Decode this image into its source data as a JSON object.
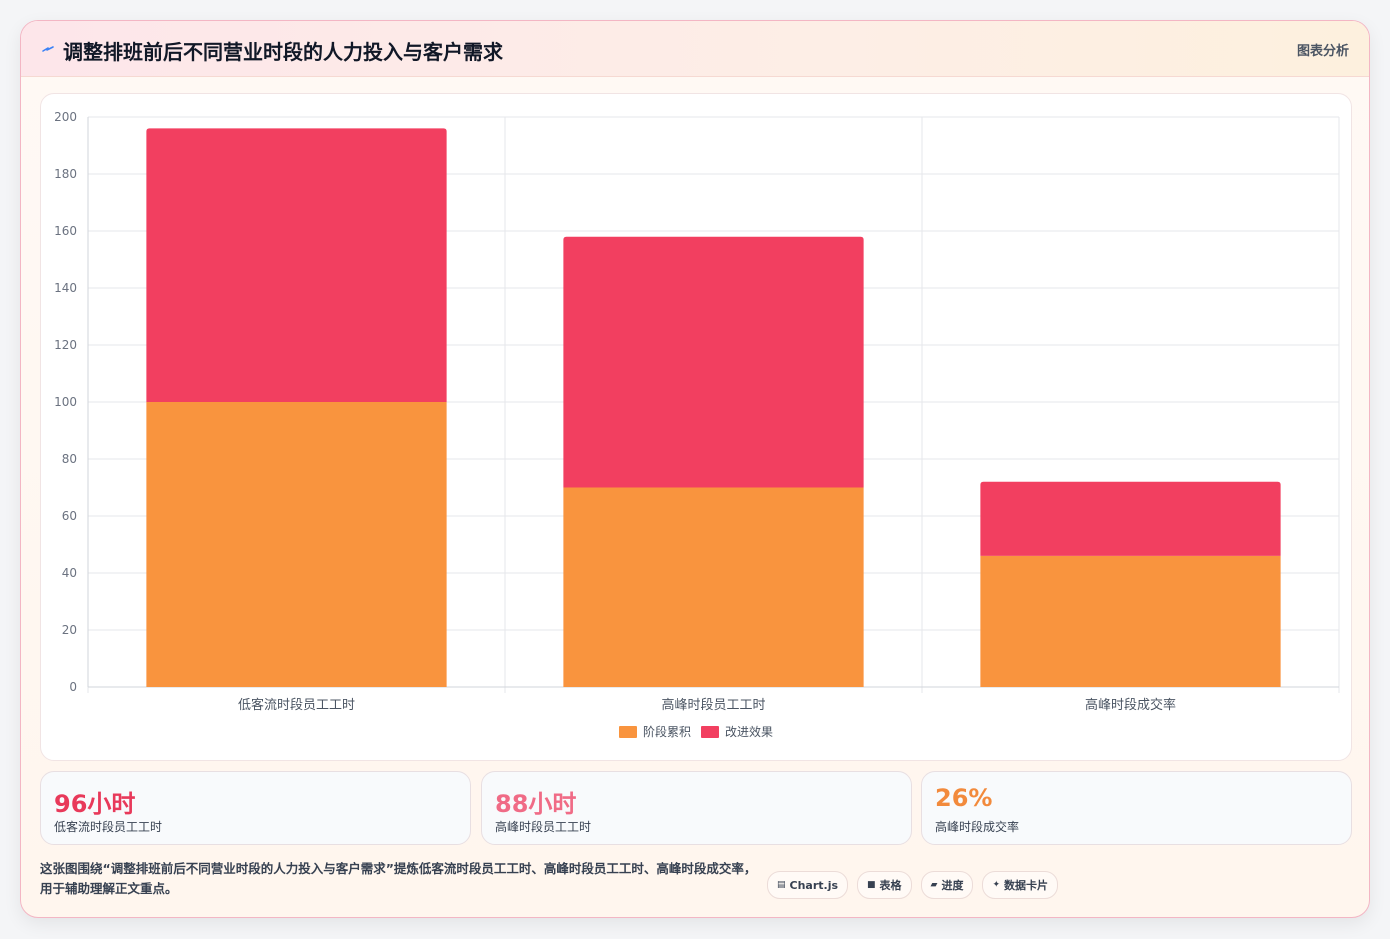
{
  "header": {
    "title": "调整排班前后不同营业时段的人力投入与客户需求",
    "tag": "图表分析",
    "title_icon": "sparkle-icon"
  },
  "chart_data": {
    "type": "bar",
    "stacked": true,
    "categories": [
      "低客流时段员工工时",
      "高峰时段员工工时",
      "高峰时段成交率"
    ],
    "series": [
      {
        "name": "阶段累积",
        "values": [
          100,
          70,
          46
        ],
        "color": "#f9943e"
      },
      {
        "name": "改进效果",
        "values": [
          96,
          88,
          26
        ],
        "color": "#f23f60"
      }
    ],
    "ylim": [
      0,
      200
    ],
    "yticks": [
      0,
      20,
      40,
      60,
      80,
      100,
      120,
      140,
      160,
      180,
      200
    ],
    "grid": true,
    "legend": "bottom-center"
  },
  "stats": [
    {
      "value": "96小时",
      "label": "低客流时段员工工时",
      "color": "#e8395a"
    },
    {
      "value": "88小时",
      "label": "高峰时段员工工时",
      "color": "#f06b86"
    },
    {
      "value": "26%",
      "label": "高峰时段成交率",
      "color": "#f28a3c"
    }
  ],
  "summary": "这张图围绕“调整排班前后不同营业时段的人力投入与客户需求”提炼低客流时段员工工时、高峰时段员工工时、高峰时段成交率，用于辅助理解正文重点。",
  "chips": [
    {
      "icon": "▤",
      "label": "Chart.js"
    },
    {
      "icon": "■",
      "label": "表格"
    },
    {
      "icon": "▰",
      "label": "进度"
    },
    {
      "icon": "✦",
      "label": "数据卡片"
    }
  ]
}
